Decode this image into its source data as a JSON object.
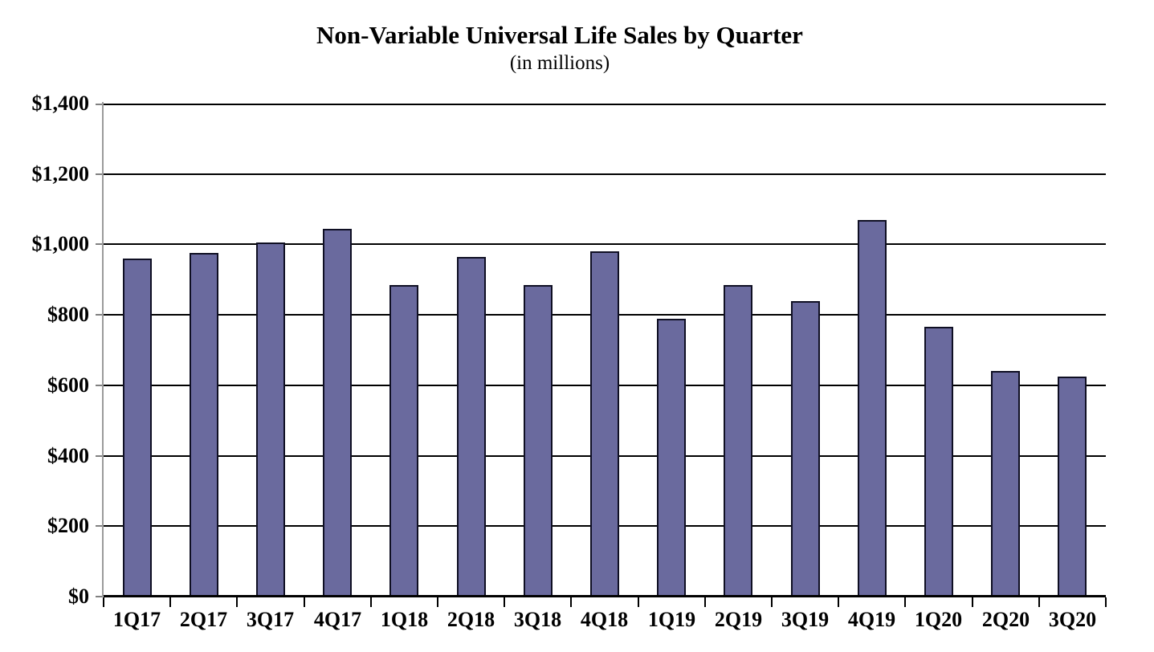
{
  "page": {
    "background": "#ffffff"
  },
  "chart_data": {
    "type": "bar",
    "title": "Non-Variable Universal Life Sales by Quarter",
    "subtitle": "(in millions)",
    "categories": [
      "1Q17",
      "2Q17",
      "3Q17",
      "4Q17",
      "1Q18",
      "2Q18",
      "3Q18",
      "4Q18",
      "1Q19",
      "2Q19",
      "3Q19",
      "4Q19",
      "1Q20",
      "2Q20",
      "3Q20"
    ],
    "values": [
      960,
      975,
      1005,
      1045,
      885,
      965,
      885,
      980,
      790,
      885,
      840,
      1070,
      765,
      640,
      625
    ],
    "xlabel": "",
    "ylabel": "",
    "ylim": [
      0,
      1400
    ],
    "y_tick_step": 200,
    "y_tick_labels": [
      "$0",
      "$200",
      "$400",
      "$600",
      "$800",
      "$1,000",
      "$1,200",
      "$1,400"
    ],
    "grid": true,
    "legend": false,
    "colors": {
      "bar_fill": "#6A6A9E",
      "bar_border": "#0F0F23",
      "gridline": "#000000",
      "axis_line": "#9B9B9B",
      "tick": "#808080",
      "text": "#000000"
    }
  }
}
